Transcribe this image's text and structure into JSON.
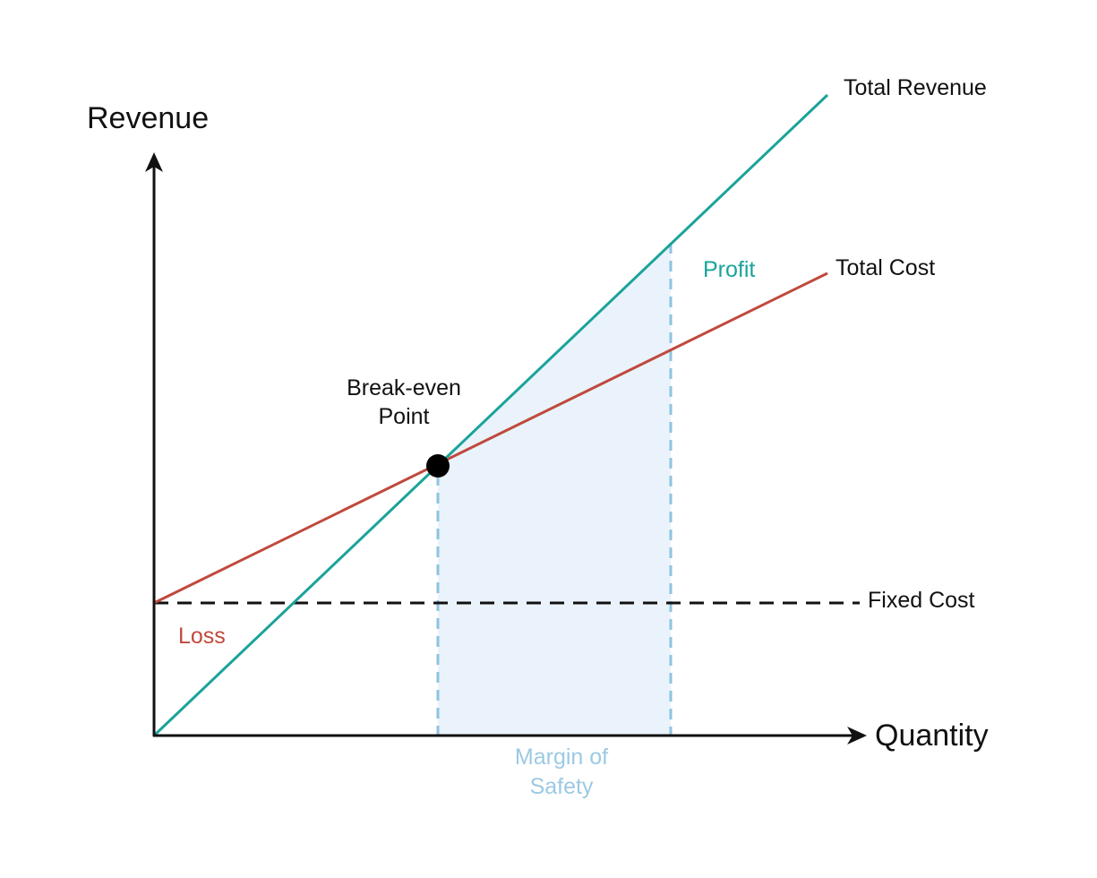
{
  "labels": {
    "y_axis": "Revenue",
    "x_axis": "Quantity",
    "total_revenue": "Total Revenue",
    "total_cost": "Total Cost",
    "fixed_cost": "Fixed Cost",
    "profit": "Profit",
    "loss": "Loss",
    "break_even_line1": "Break-even",
    "break_even_line2": "Point",
    "margin_line1": "Margin of",
    "margin_line2": "Safety"
  },
  "colors": {
    "total_revenue": "#1aa39a",
    "total_cost": "#c0493d",
    "fixed_cost": "#111111",
    "axis": "#111111",
    "margin": "#8ec3e0",
    "margin_fill": "#eaf3fb",
    "profit_text": "#1aa39a",
    "loss_text": "#c0493d",
    "margin_text": "#9cc9e4",
    "break_even_point": "#000000"
  }
}
